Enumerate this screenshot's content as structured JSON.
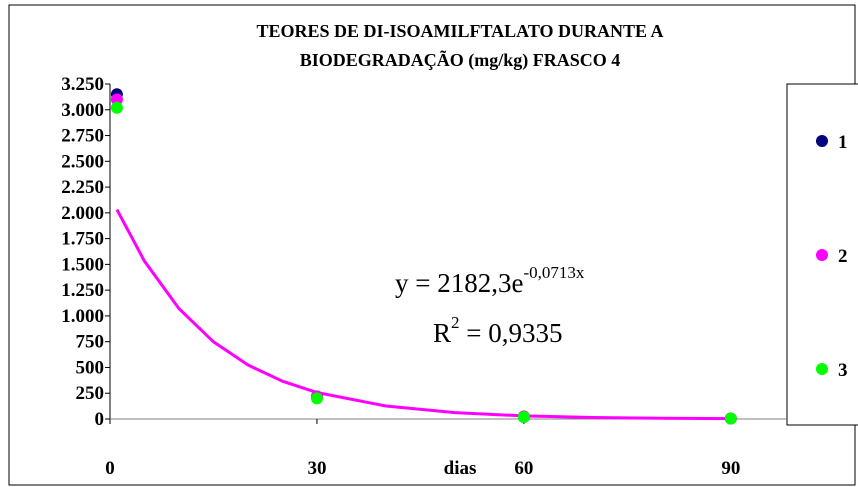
{
  "chart_data": {
    "type": "scatter",
    "title": [
      "TEORES DE DI-ISOAMILFTALATO DURANTE A",
      "BIODEGRADAÇÃO (mg/kg) FRASCO 4"
    ],
    "xlabel": "dias",
    "xlim": [
      0,
      98
    ],
    "xticks": [
      0,
      30,
      60,
      90
    ],
    "ylim": [
      0,
      3250
    ],
    "yticks": [
      0,
      250,
      500,
      750,
      {
        "value": 1000,
        "label": "1.000"
      },
      {
        "value": 1250,
        "label": "1.250"
      },
      {
        "value": 1500,
        "label": "1.500"
      },
      {
        "value": 1750,
        "label": "1.750"
      },
      {
        "value": 2000,
        "label": "2.000"
      },
      {
        "value": 2250,
        "label": "2.250"
      },
      {
        "value": 2500,
        "label": "2.500"
      },
      {
        "value": 2750,
        "label": "2.750"
      },
      {
        "value": 3000,
        "label": "3.000"
      },
      {
        "value": 3250,
        "label": "3.250"
      }
    ],
    "series": [
      {
        "name": "1",
        "color": "#000080",
        "x": [
          1,
          30,
          60,
          90
        ],
        "values": [
          3150,
          210,
          20,
          5
        ]
      },
      {
        "name": "2",
        "color": "#ff00ff",
        "x": [
          1,
          30,
          60,
          90
        ],
        "values": [
          3100,
          220,
          25,
          5
        ]
      },
      {
        "name": "3",
        "color": "#00ff00",
        "x": [
          1,
          30,
          60,
          90
        ],
        "values": [
          3020,
          200,
          20,
          5
        ]
      }
    ],
    "trendline": {
      "color": "#ff00ff",
      "x": [
        1,
        5,
        10,
        15,
        20,
        25,
        30,
        40,
        50,
        60,
        70,
        80,
        90
      ],
      "values": [
        2032,
        1531,
        1071,
        749,
        524,
        367,
        257,
        126,
        62,
        30,
        15,
        7,
        3.5
      ]
    },
    "equation": {
      "text": "y = 2182,3e",
      "sup": "-0,0713x"
    },
    "r_squared": {
      "text": "R",
      "sup": "2",
      "rest": " = 0,9335"
    },
    "legend": "right"
  }
}
